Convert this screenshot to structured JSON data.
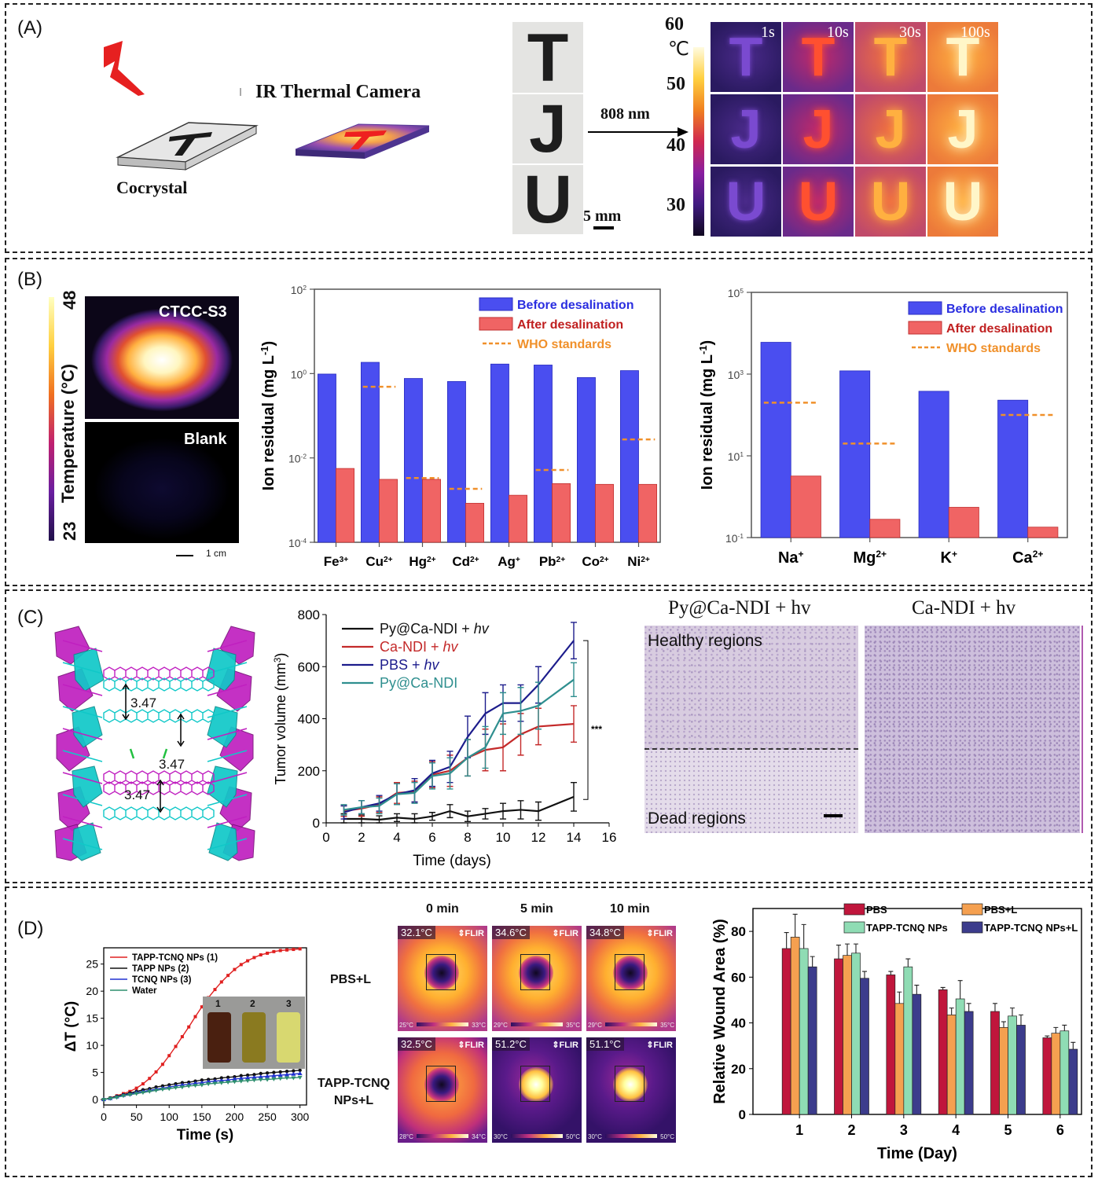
{
  "panels": {
    "a": "(A)",
    "b": "(B)",
    "c": "(C)",
    "d": "(D)"
  },
  "panel_a": {
    "cocrystal_label": "Cocrystal",
    "camera_label": "IR Thermal Camera",
    "letters": [
      "T",
      "J",
      "U"
    ],
    "scale_bar": "5 mm",
    "laser_label": "808 nm",
    "colorbar": {
      "max": "60",
      "unit": "℃",
      "ticks": [
        "50",
        "40",
        "30"
      ]
    },
    "time_labels": [
      "1s",
      "10s",
      "30s",
      "100s"
    ]
  },
  "panel_b": {
    "colorbar_label": "Temperature (°C)",
    "colorbar_max": "48",
    "colorbar_min": "23",
    "sample_label": "CTCC-S3",
    "blank_label": "Blank",
    "scale_bar": "1 cm"
  },
  "panel_c": {
    "title_left": "Py@Ca-NDI + hv",
    "title_right": "Ca-NDI + hv",
    "healthy_label": "Healthy regions",
    "dead_label": "Dead regions",
    "distances": [
      "3.47",
      "3.47",
      "3.47"
    ]
  },
  "panel_d": {
    "times": [
      "0 min",
      "5 min",
      "10 min"
    ],
    "row_labels": [
      "PBS+L",
      "TAPP-TCNQ NPs+L"
    ],
    "temps": [
      [
        "32.1°C",
        "34.6°C",
        "34.8°C"
      ],
      [
        "32.5°C",
        "51.2°C",
        "51.1°C"
      ]
    ],
    "brand": "FLIR",
    "vial_labels": [
      "1",
      "2",
      "3"
    ]
  },
  "colors": {
    "blue": "#4a4ef0",
    "red": "#f06464",
    "who": "#f0902a"
  },
  "chart_data": [
    {
      "type": "bar",
      "id": "b-heavy-metals",
      "categories": [
        "Fe3+",
        "Cu2+",
        "Hg2+",
        "Cd2+",
        "Ag+",
        "Pb2+",
        "Co2+",
        "Ni2+"
      ],
      "category_labels": [
        [
          "Fe",
          "3+"
        ],
        [
          "Cu",
          "2+"
        ],
        [
          "Hg",
          "2+"
        ],
        [
          "Cd",
          "2+"
        ],
        [
          "Ag",
          "+"
        ],
        [
          "Pb",
          "2+"
        ],
        [
          "Co",
          "2+"
        ],
        [
          "Ni",
          "2+"
        ]
      ],
      "series": [
        {
          "name": "Before desalination",
          "values": [
            4.5,
            9.5,
            3.4,
            2.8,
            8.5,
            8,
            3.6,
            5.6
          ]
        },
        {
          "name": "After desalination",
          "values": [
            0.011,
            0.0055,
            0.0055,
            0.0012,
            0.002,
            0.0042,
            0.004,
            0.004
          ]
        }
      ],
      "who_standards": [
        null,
        2,
        0.006,
        0.003,
        null,
        0.01,
        null,
        0.07
      ],
      "legend_who": "WHO standards",
      "ylabel": "Ion residual (mg L-1)",
      "ylabel_base": "Ion residual (mg L",
      "ylabel_sup": "-1",
      "ylabel_end": ")",
      "yscale": "log",
      "ylim": [
        0.0001,
        1000
      ],
      "yticks": [
        [
          "10",
          "-4"
        ],
        [
          "10",
          "-2"
        ],
        [
          "10",
          "0"
        ],
        [
          "10",
          "2"
        ]
      ]
    },
    {
      "type": "bar",
      "id": "b-major-ions",
      "categories": [
        "Na+",
        "Mg2+",
        "K+",
        "Ca2+"
      ],
      "category_labels": [
        [
          "Na",
          "+"
        ],
        [
          "Mg",
          "2+"
        ],
        [
          "K",
          "+"
        ],
        [
          "Ca",
          "2+"
        ]
      ],
      "series": [
        {
          "name": "Before desalination",
          "values": [
            6000,
            1200,
            380,
            230
          ]
        },
        {
          "name": "After desalination",
          "values": [
            3.2,
            0.28,
            0.55,
            0.18
          ]
        }
      ],
      "who_standards": [
        200,
        20,
        null,
        100
      ],
      "legend_who": "WHO standards",
      "ylabel": "Ion residual (mg L-1)",
      "ylabel_base": "Ion residual (mg L",
      "ylabel_sup": "-1",
      "ylabel_end": ")",
      "yscale": "log",
      "ylim": [
        0.1,
        100000
      ],
      "yticks": [
        [
          "10",
          "-1"
        ],
        [
          "10",
          "1"
        ],
        [
          "10",
          "3"
        ],
        [
          "10",
          "5"
        ]
      ]
    },
    {
      "type": "line",
      "id": "c-tumor-volume",
      "x": [
        1,
        2,
        3,
        4,
        5,
        6,
        7,
        8,
        9,
        10,
        11,
        12,
        14
      ],
      "series": [
        {
          "name": "Py@Ca-NDI + hv",
          "color": "#111111",
          "values": [
            15,
            15,
            12,
            20,
            15,
            25,
            45,
            25,
            35,
            45,
            50,
            45,
            100
          ],
          "errors": [
            20,
            15,
            15,
            15,
            20,
            15,
            25,
            20,
            20,
            30,
            35,
            35,
            55
          ]
        },
        {
          "name": "Ca-NDI + hv",
          "color": "#c42a2a",
          "values": [
            45,
            55,
            70,
            115,
            120,
            185,
            200,
            250,
            280,
            290,
            340,
            370,
            380
          ],
          "errors": [
            20,
            30,
            30,
            40,
            40,
            50,
            60,
            70,
            80,
            90,
            80,
            70,
            70
          ]
        },
        {
          "name": "PBS + hv",
          "color": "#1c1c8c",
          "values": [
            40,
            60,
            75,
            110,
            125,
            190,
            215,
            330,
            420,
            460,
            460,
            530,
            700
          ],
          "errors": [
            25,
            25,
            30,
            40,
            45,
            50,
            60,
            80,
            80,
            70,
            70,
            70,
            70
          ]
        },
        {
          "name": "Py@Ca-NDI",
          "color": "#2f8f8f",
          "values": [
            50,
            60,
            65,
            110,
            115,
            180,
            190,
            250,
            290,
            420,
            430,
            450,
            550
          ],
          "errors": [
            20,
            25,
            30,
            40,
            40,
            50,
            60,
            70,
            80,
            80,
            90,
            90,
            65
          ]
        }
      ],
      "xlabel": "Time (days)",
      "ylabel": "Tumor volume (mm3)",
      "ylabel_base": "Tumor volume (mm",
      "ylabel_sup": "3",
      "ylabel_end": ")",
      "xlim": [
        0,
        16
      ],
      "ylim": [
        0,
        800
      ],
      "xticks": [
        0,
        2,
        4,
        6,
        8,
        10,
        12,
        14,
        16
      ],
      "yticks": [
        0,
        200,
        400,
        600,
        800
      ],
      "significance": "***"
    },
    {
      "type": "line",
      "id": "d-temperature",
      "x": [
        0,
        10,
        20,
        30,
        40,
        50,
        60,
        70,
        80,
        90,
        100,
        110,
        120,
        130,
        140,
        150,
        160,
        170,
        180,
        190,
        200,
        210,
        220,
        230,
        240,
        250,
        260,
        270,
        280,
        290,
        300
      ],
      "series": [
        {
          "name": "TAPP-TCNQ NPs (1)",
          "color": "#e02020",
          "values": [
            0,
            0.3,
            0.7,
            1.1,
            1.5,
            2.1,
            2.9,
            3.9,
            5.1,
            6.5,
            8.1,
            9.8,
            11.6,
            13.4,
            15.3,
            17.1,
            18.8,
            20.3,
            21.7,
            22.9,
            24,
            24.9,
            25.6,
            26.2,
            26.7,
            27,
            27.3,
            27.5,
            27.6,
            27.7,
            27.8
          ]
        },
        {
          "name": "TAPP NPs (2)",
          "color": "#111111",
          "values": [
            0,
            0.3,
            0.6,
            0.9,
            1.2,
            1.5,
            1.8,
            2.0,
            2.3,
            2.5,
            2.7,
            2.9,
            3.1,
            3.2,
            3.4,
            3.6,
            3.7,
            3.8,
            4.0,
            4.1,
            4.2,
            4.4,
            4.5,
            4.6,
            4.8,
            4.9,
            5.0,
            5.1,
            5.2,
            5.3,
            5.4
          ]
        },
        {
          "name": "TCNQ NPs (3)",
          "color": "#2030d0",
          "values": [
            0,
            0.2,
            0.5,
            0.8,
            1.0,
            1.3,
            1.5,
            1.7,
            1.9,
            2.1,
            2.3,
            2.5,
            2.7,
            2.8,
            3.0,
            3.1,
            3.3,
            3.4,
            3.5,
            3.6,
            3.8,
            3.9,
            4.0,
            4.1,
            4.2,
            4.3,
            4.4,
            4.5,
            4.6,
            4.7,
            4.8
          ]
        },
        {
          "name": "Water",
          "color": "#2f8f6f",
          "values": [
            0,
            0.2,
            0.4,
            0.7,
            0.9,
            1.1,
            1.3,
            1.5,
            1.7,
            1.9,
            2.0,
            2.2,
            2.3,
            2.5,
            2.6,
            2.7,
            2.9,
            3.0,
            3.1,
            3.2,
            3.3,
            3.4,
            3.5,
            3.6,
            3.7,
            3.7,
            3.8,
            3.9,
            4.0,
            4.0,
            4.1
          ]
        }
      ],
      "xlabel": "Time (s)",
      "ylabel": "ΔT (°C)",
      "xlim": [
        0,
        310
      ],
      "ylim": [
        -1,
        28
      ],
      "xticks": [
        0,
        50,
        100,
        150,
        200,
        250,
        300
      ],
      "yticks": [
        0,
        5,
        10,
        15,
        20,
        25
      ]
    },
    {
      "type": "bar",
      "id": "d-wound-area",
      "categories": [
        "1",
        "2",
        "3",
        "4",
        "5",
        "6"
      ],
      "series": [
        {
          "name": "PBS",
          "color": "#c0163c",
          "values": [
            72.5,
            68,
            61,
            54.5,
            45,
            33.5
          ],
          "errors": [
            7,
            6,
            1.5,
            1,
            3.5,
            0.8
          ]
        },
        {
          "name": "PBS+L",
          "color": "#f5a050",
          "values": [
            77.5,
            69.5,
            48.5,
            43.5,
            38,
            35.5
          ],
          "errors": [
            10,
            5,
            5,
            3,
            2.5,
            2.5
          ]
        },
        {
          "name": "TAPP-TCNQ NPs",
          "color": "#8fdcb4",
          "values": [
            72.5,
            70.5,
            64.5,
            50.5,
            43,
            36.5
          ],
          "errors": [
            10.5,
            4,
            3.5,
            8,
            3.5,
            2.5
          ]
        },
        {
          "name": "TAPP-TCNQ NPs+L",
          "color": "#3c3c8c",
          "values": [
            64.5,
            59.5,
            52.5,
            45,
            39,
            28.5
          ],
          "errors": [
            4.5,
            3,
            4,
            3.5,
            4.5,
            3
          ]
        }
      ],
      "xlabel": "Time (Day)",
      "ylabel": "Relative Wound Area (%)",
      "ylim": [
        0,
        90
      ],
      "yticks": [
        0,
        20,
        40,
        60,
        80
      ]
    }
  ]
}
